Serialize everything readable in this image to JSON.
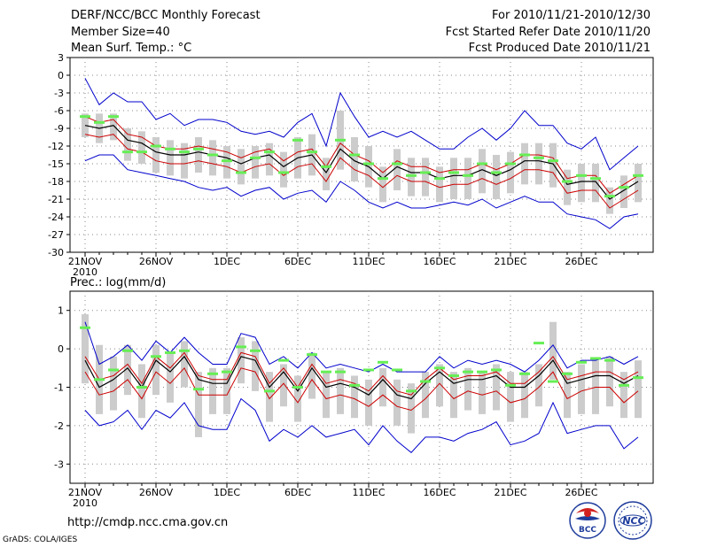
{
  "header": {
    "title": "DERF/NCC/BCC Monthly Forecast",
    "member_size": "Member Size=40",
    "variable": "Mean Surf. Temp.: °C",
    "forecast_period": "For 2010/11/21-2010/12/30",
    "start_ref_date": "Fcst Started Refer Date 2010/11/20",
    "produced_date": "Fcst Produced Date 2010/11/21"
  },
  "footer": {
    "url": "http://cmdp.ncc.cma.gov.cn",
    "credit": "GrADS: COLA/IGES",
    "logo_bcc": "BCC",
    "logo_ncc": "NCC"
  },
  "colors": {
    "max_line": "#0000cc",
    "min_line": "#0000cc",
    "upper_line": "#cc0000",
    "lower_line": "#cc0000",
    "mean_line": "#000000",
    "box": "#cccccc",
    "marker": "#66ee55",
    "grid": "#888888"
  },
  "chart_data": [
    {
      "type": "line",
      "title": "Mean Surf. Temp.: °C",
      "ylim": [
        -30,
        3
      ],
      "yticks": [
        3,
        0,
        -3,
        -6,
        -9,
        -12,
        -15,
        -18,
        -21,
        -24,
        -27,
        -30
      ],
      "ytick_labels": [
        "3",
        "0",
        "-3",
        "-6",
        "-9",
        "-12",
        "-15",
        "-18",
        "-21",
        "-24",
        "-27",
        "-30"
      ],
      "x": [
        1,
        2,
        3,
        4,
        5,
        6,
        7,
        8,
        9,
        10,
        11,
        12,
        13,
        14,
        15,
        16,
        17,
        18,
        19,
        20,
        21,
        22,
        23,
        24,
        25,
        26,
        27,
        28,
        29,
        30,
        31,
        32,
        33,
        34,
        35,
        36,
        37,
        38,
        39,
        40
      ],
      "xtick_days": [
        1,
        6,
        11,
        16,
        21,
        26,
        31,
        36
      ],
      "xtick_labels": [
        "21NOV",
        "26NOV",
        "1DEC",
        "6DEC",
        "11DEC",
        "16DEC",
        "21DEC",
        "26DEC"
      ],
      "xtick_year": "2010",
      "series": [
        {
          "name": "max",
          "values": [
            -0.5,
            -5,
            -3,
            -4.5,
            -4.5,
            -7.5,
            -6.5,
            -8.5,
            -7.5,
            -7.5,
            -8,
            -9.5,
            -10,
            -9.5,
            -10.5,
            -8,
            -6.5,
            -12,
            -3,
            -7,
            -10.5,
            -9.5,
            -10.5,
            -9.5,
            -11,
            -12.5,
            -12.5,
            -10.5,
            -9,
            -11,
            -9,
            -6,
            -8.5,
            -8.5,
            -11.5,
            -12.5,
            -10.5,
            -16,
            -14,
            -12
          ]
        },
        {
          "name": "upper",
          "values": [
            -7,
            -8,
            -7.5,
            -10,
            -10.5,
            -12,
            -12.5,
            -12.5,
            -12,
            -12.5,
            -13,
            -14,
            -13,
            -12.5,
            -14.5,
            -13,
            -12.5,
            -15.5,
            -11.5,
            -13.5,
            -14.5,
            -16.5,
            -14.5,
            -15.5,
            -15.5,
            -16.5,
            -16,
            -16,
            -15,
            -16,
            -15,
            -13.5,
            -13.5,
            -14,
            -17.5,
            -17,
            -17,
            -20,
            -18.5,
            -17
          ]
        },
        {
          "name": "mean",
          "values": [
            -8.5,
            -9,
            -8.5,
            -11,
            -11.5,
            -13,
            -13.5,
            -13.5,
            -13,
            -13.5,
            -14,
            -15,
            -14,
            -13.5,
            -15.5,
            -14,
            -13.5,
            -16.5,
            -12.5,
            -14.5,
            -15.5,
            -17.5,
            -15.5,
            -16.5,
            -16.5,
            -17.5,
            -17,
            -17,
            -16,
            -17,
            -16,
            -14.5,
            -14.5,
            -15,
            -18.5,
            -18,
            -18,
            -21,
            -19.5,
            -18
          ]
        },
        {
          "name": "lower",
          "values": [
            -10,
            -10.5,
            -10,
            -12.5,
            -13,
            -14.5,
            -15,
            -15,
            -14.5,
            -15,
            -15.5,
            -16.5,
            -15.5,
            -15,
            -17,
            -15.5,
            -15,
            -18,
            -14,
            -16,
            -17,
            -19,
            -17,
            -18,
            -18,
            -19,
            -18.5,
            -18.5,
            -17.5,
            -18.5,
            -17.5,
            -16,
            -16,
            -16.5,
            -20,
            -19.5,
            -19.5,
            -22.5,
            -21,
            -19.5
          ]
        },
        {
          "name": "min",
          "values": [
            -14.5,
            -13.5,
            -13.5,
            -16,
            -16.5,
            -17,
            -17.5,
            -18,
            -19,
            -19.5,
            -19,
            -20.5,
            -19.5,
            -19,
            -21,
            -20,
            -19.5,
            -21.5,
            -18,
            -19.5,
            -21.5,
            -22.5,
            -21.5,
            -22.5,
            -22.5,
            -22,
            -21.5,
            -22,
            -21,
            -22.5,
            -21.5,
            -20.5,
            -21.5,
            -21.5,
            -23.5,
            -24,
            -24.5,
            -26,
            -24,
            -23.5
          ]
        },
        {
          "name": "box_top",
          "values": [
            -6.5,
            -6.5,
            -6.5,
            -9,
            -9.5,
            -10.5,
            -11,
            -11.5,
            -10.5,
            -11,
            -12,
            -12.5,
            -12,
            -11.5,
            -13,
            -10.5,
            -10,
            -14,
            -6,
            -10.5,
            -12,
            -15.5,
            -12.5,
            -14,
            -14,
            -15.5,
            -14,
            -14,
            -12.5,
            -13.5,
            -13,
            -11.5,
            -11.5,
            -11.5,
            -16,
            -15,
            -15,
            -19,
            -17,
            -15
          ]
        },
        {
          "name": "box_bottom",
          "values": [
            -10.5,
            -11.5,
            -11,
            -14.5,
            -15,
            -16.5,
            -17,
            -17.5,
            -16.5,
            -17,
            -17.5,
            -18.5,
            -17.5,
            -17,
            -19,
            -17.5,
            -17,
            -19.5,
            -16,
            -18,
            -19,
            -21.5,
            -19.5,
            -20.5,
            -20.5,
            -21.5,
            -21,
            -21,
            -20,
            -21,
            -20,
            -18.5,
            -18.5,
            -19,
            -22,
            -21.5,
            -21.5,
            -23.5,
            -22.5,
            -21.5
          ]
        },
        {
          "name": "marker",
          "values": [
            -7,
            -8,
            -7,
            -13,
            -13,
            -12,
            -12.5,
            -13,
            -12.5,
            -13.5,
            -14.5,
            -16.5,
            -14,
            -13,
            -16.5,
            -11,
            -13,
            -15.5,
            -11,
            -13.5,
            -15,
            -17.5,
            -15,
            -17,
            -16.5,
            -17.5,
            -16.5,
            -17,
            -15,
            -16.5,
            -15,
            -13.5,
            -14,
            -14.5,
            -18,
            -17,
            -17.5,
            -20.5,
            -19,
            -17
          ]
        }
      ]
    },
    {
      "type": "line",
      "title": "Prec.: log(mm/d)",
      "ylim": [
        -3.5,
        1.5
      ],
      "yticks": [
        1,
        0,
        -1,
        -2,
        -3
      ],
      "ytick_labels": [
        "1",
        "0",
        "-1",
        "-2",
        "-3"
      ],
      "x": [
        1,
        2,
        3,
        4,
        5,
        6,
        7,
        8,
        9,
        10,
        11,
        12,
        13,
        14,
        15,
        16,
        17,
        18,
        19,
        20,
        21,
        22,
        23,
        24,
        25,
        26,
        27,
        28,
        29,
        30,
        31,
        32,
        33,
        34,
        35,
        36,
        37,
        38,
        39,
        40
      ],
      "xtick_days": [
        1,
        6,
        11,
        16,
        21,
        26,
        31,
        36
      ],
      "xtick_labels": [
        "21NOV",
        "26NOV",
        "1DEC",
        "6DEC",
        "11DEC",
        "16DEC",
        "21DEC",
        "26DEC"
      ],
      "xtick_year": "2010",
      "series": [
        {
          "name": "max",
          "values": [
            0.7,
            -0.4,
            -0.2,
            0.1,
            -0.3,
            0.2,
            -0.1,
            0.3,
            -0.1,
            -0.4,
            -0.4,
            0.4,
            0.3,
            -0.4,
            -0.2,
            -0.5,
            -0.1,
            -0.5,
            -0.4,
            -0.5,
            -0.6,
            -0.4,
            -0.6,
            -0.6,
            -0.6,
            -0.2,
            -0.5,
            -0.3,
            -0.4,
            -0.3,
            -0.4,
            -0.6,
            -0.3,
            0.1,
            -0.5,
            -0.3,
            -0.3,
            -0.2,
            -0.4,
            -0.2
          ]
        },
        {
          "name": "upper",
          "values": [
            -0.2,
            -0.8,
            -0.7,
            -0.4,
            -0.9,
            -0.2,
            -0.5,
            -0.1,
            -0.7,
            -0.8,
            -0.8,
            -0.1,
            -0.2,
            -0.9,
            -0.5,
            -1.0,
            -0.4,
            -0.9,
            -0.8,
            -0.9,
            -1.1,
            -0.7,
            -1.1,
            -1.2,
            -0.8,
            -0.5,
            -0.8,
            -0.7,
            -0.7,
            -0.6,
            -0.9,
            -0.9,
            -0.6,
            -0.2,
            -0.8,
            -0.7,
            -0.6,
            -0.6,
            -0.8,
            -0.6
          ]
        },
        {
          "name": "mean",
          "values": [
            -0.3,
            -1.0,
            -0.8,
            -0.5,
            -1.0,
            -0.3,
            -0.6,
            -0.2,
            -0.8,
            -0.9,
            -0.9,
            -0.2,
            -0.3,
            -1.0,
            -0.6,
            -1.1,
            -0.5,
            -1.0,
            -0.9,
            -1.0,
            -1.2,
            -0.8,
            -1.2,
            -1.3,
            -0.9,
            -0.6,
            -0.9,
            -0.8,
            -0.8,
            -0.7,
            -1.0,
            -1.0,
            -0.7,
            -0.3,
            -0.9,
            -0.8,
            -0.7,
            -0.7,
            -0.9,
            -0.7
          ]
        },
        {
          "name": "lower",
          "values": [
            -0.6,
            -1.2,
            -1.1,
            -0.8,
            -1.3,
            -0.6,
            -0.9,
            -0.5,
            -1.2,
            -1.2,
            -1.2,
            -0.5,
            -0.6,
            -1.3,
            -0.9,
            -1.4,
            -0.8,
            -1.3,
            -1.2,
            -1.3,
            -1.5,
            -1.2,
            -1.5,
            -1.6,
            -1.3,
            -0.9,
            -1.3,
            -1.1,
            -1.2,
            -1.1,
            -1.4,
            -1.3,
            -1.0,
            -0.6,
            -1.3,
            -1.1,
            -1.0,
            -1.0,
            -1.4,
            -1.1
          ]
        },
        {
          "name": "min",
          "values": [
            -1.6,
            -2.0,
            -1.9,
            -1.6,
            -2.1,
            -1.6,
            -1.8,
            -1.4,
            -2.0,
            -2.1,
            -2.1,
            -1.3,
            -1.6,
            -2.4,
            -2.1,
            -2.3,
            -2.0,
            -2.3,
            -2.2,
            -2.1,
            -2.5,
            -2.0,
            -2.4,
            -2.7,
            -2.3,
            -2.3,
            -2.4,
            -2.2,
            -2.1,
            -1.9,
            -2.5,
            -2.4,
            -2.2,
            -1.4,
            -2.2,
            -2.1,
            -2.0,
            -2.0,
            -2.6,
            -2.3
          ]
        },
        {
          "name": "box_top",
          "values": [
            0.9,
            0.1,
            -0.2,
            0.1,
            -0.4,
            0.1,
            -0.1,
            0.2,
            -0.6,
            -0.5,
            -0.5,
            0.3,
            0.2,
            -0.6,
            -0.4,
            -0.7,
            -0.1,
            -0.6,
            -0.5,
            -0.7,
            -0.8,
            -0.5,
            -0.8,
            -0.9,
            -0.6,
            -0.4,
            -0.6,
            -0.5,
            -0.6,
            -0.4,
            -0.6,
            -0.6,
            -0.4,
            0.7,
            -0.6,
            -0.4,
            -0.3,
            -0.2,
            -0.6,
            -0.3
          ]
        },
        {
          "name": "box_bottom",
          "values": [
            -0.9,
            -1.7,
            -1.6,
            -1.2,
            -1.8,
            -1.2,
            -1.4,
            -1.0,
            -2.3,
            -1.7,
            -1.7,
            -0.9,
            -1.1,
            -1.9,
            -1.5,
            -1.9,
            -1.3,
            -1.8,
            -1.7,
            -1.8,
            -2.0,
            -1.5,
            -2.0,
            -2.2,
            -1.8,
            -1.5,
            -1.8,
            -1.6,
            -1.7,
            -1.6,
            -1.9,
            -1.8,
            -1.5,
            -0.8,
            -1.8,
            -1.7,
            -1.7,
            -1.5,
            -1.8,
            -1.8
          ]
        },
        {
          "name": "marker",
          "values": [
            0.55,
            -0.8,
            -0.55,
            -0.05,
            -1.0,
            -0.2,
            -0.1,
            -0.05,
            -1.05,
            -0.65,
            -0.6,
            0.05,
            -0.05,
            -1.1,
            -0.3,
            -1.0,
            -0.15,
            -0.6,
            -0.6,
            -0.95,
            -0.55,
            -0.35,
            -0.55,
            -1.1,
            -0.85,
            -0.5,
            -0.7,
            -0.6,
            -0.6,
            -0.55,
            -0.95,
            -0.65,
            0.15,
            -0.85,
            -0.65,
            -0.35,
            -0.25,
            -0.3,
            -0.95,
            -0.75
          ]
        }
      ]
    }
  ]
}
